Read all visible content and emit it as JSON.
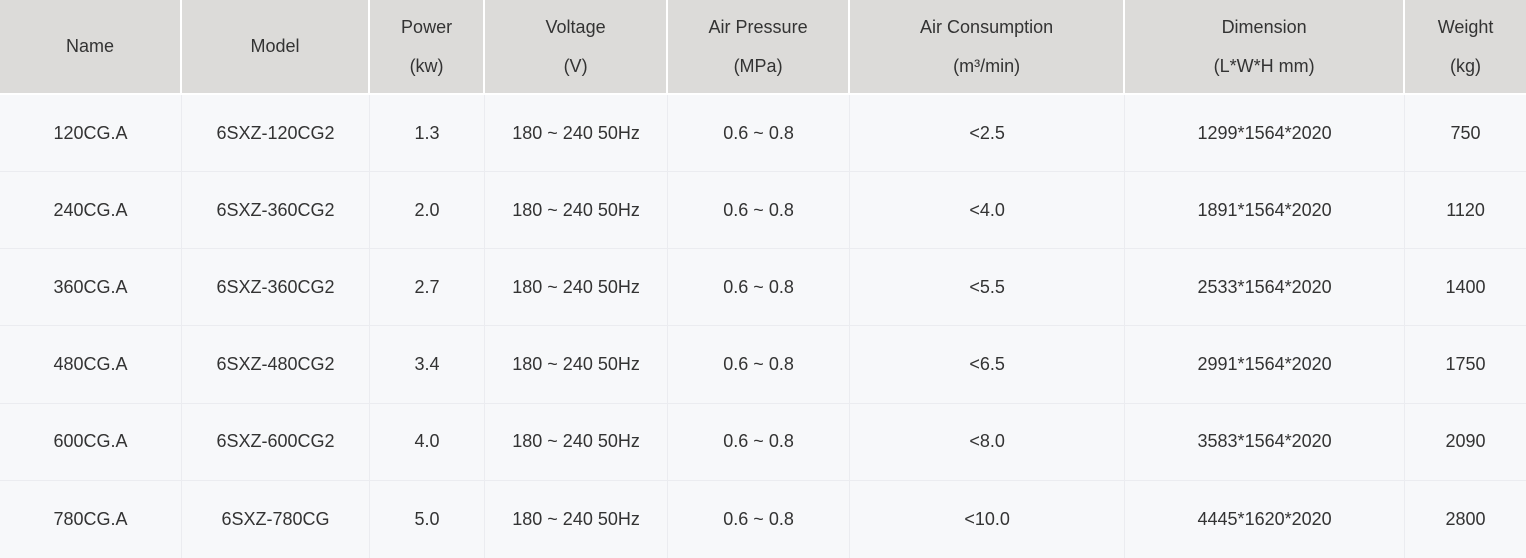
{
  "chart_data": {
    "type": "table",
    "columns": [
      {
        "label": "Name",
        "unit": ""
      },
      {
        "label": "Model",
        "unit": ""
      },
      {
        "label": "Power",
        "unit": "(kw)"
      },
      {
        "label": "Voltage",
        "unit": "(V)"
      },
      {
        "label": "Air Pressure",
        "unit": "(MPa)"
      },
      {
        "label": "Air Consumption",
        "unit": "(m³/min)"
      },
      {
        "label": "Dimension",
        "unit": "(L*W*H mm)"
      },
      {
        "label": "Weight",
        "unit": "(kg)"
      }
    ],
    "rows": [
      [
        "120CG.A",
        "6SXZ-120CG2",
        "1.3",
        "180 ~ 240 50Hz",
        "0.6 ~ 0.8",
        "<2.5",
        "1299*1564*2020",
        "750"
      ],
      [
        "240CG.A",
        "6SXZ-360CG2",
        "2.0",
        "180 ~ 240 50Hz",
        "0.6 ~ 0.8",
        "<4.0",
        "1891*1564*2020",
        "1120"
      ],
      [
        "360CG.A",
        "6SXZ-360CG2",
        "2.7",
        "180 ~ 240 50Hz",
        "0.6 ~ 0.8",
        "<5.5",
        "2533*1564*2020",
        "1400"
      ],
      [
        "480CG.A",
        "6SXZ-480CG2",
        "3.4",
        "180 ~ 240 50Hz",
        "0.6 ~ 0.8",
        "<6.5",
        "2991*1564*2020",
        "1750"
      ],
      [
        "600CG.A",
        "6SXZ-600CG2",
        "4.0",
        "180 ~ 240 50Hz",
        "0.6 ~ 0.8",
        "<8.0",
        "3583*1564*2020",
        "2090"
      ],
      [
        "780CG.A",
        "6SXZ-780CG",
        "5.0",
        "180 ~ 240 50Hz",
        "0.6 ~ 0.8",
        "<10.0",
        "4445*1620*2020",
        "2800"
      ]
    ],
    "layout": {
      "grid": true,
      "header_position": "top"
    },
    "colors": {
      "header_background": "#dcdbd9",
      "header_separator": "#ffffff",
      "body_background": "#f7f8fa",
      "grid_line": "#ebecf0",
      "text": "#333333"
    }
  }
}
